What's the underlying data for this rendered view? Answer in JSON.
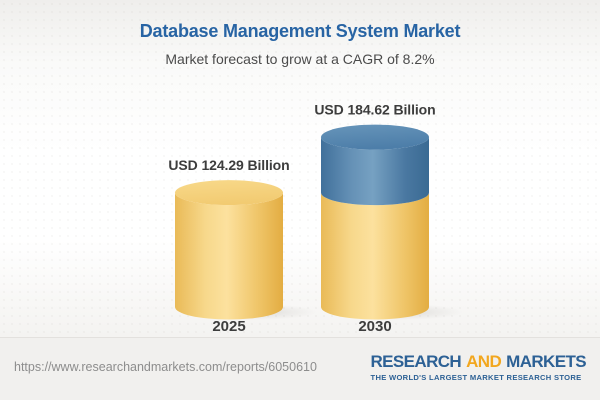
{
  "header": {
    "title": "Database Management System Market",
    "subtitle": "Market forecast to grow at a CAGR of 8.2%"
  },
  "chart_data": {
    "type": "bar",
    "subtype": "3d-cylinder",
    "categories": [
      "2025",
      "2030"
    ],
    "values": [
      124.29,
      184.62
    ],
    "value_labels": [
      "USD 124.29 Billion",
      "USD 184.62 Billion"
    ],
    "unit": "USD Billion",
    "cagr_percent": 8.2,
    "title": "Database Management System Market",
    "subtitle": "Market forecast to grow at a CAGR of 8.2%",
    "legend_position": "none",
    "grid": false,
    "series_colors": {
      "base_2025": "#f2ca70",
      "growth_increment": "#4f80ab"
    },
    "note": "2030 cylinder shows the 2025 base value in yellow with the incremental growth segment in blue on top"
  },
  "footer": {
    "url": "https://www.researchandmarkets.com/reports/6050610",
    "logo": {
      "word1": "RESEARCH",
      "word2": "AND",
      "word3": "MARKETS",
      "tagline": "THE WORLD'S LARGEST MARKET RESEARCH STORE"
    }
  },
  "colors": {
    "title_blue": "#2864a4",
    "label_dark": "#3d3d3d",
    "cylinder_yellow": "#f2ca70",
    "cylinder_blue": "#4f80ab",
    "logo_blue": "#2d6195",
    "logo_gold": "#f2a71f",
    "footer_background": "#f1f0ee"
  }
}
